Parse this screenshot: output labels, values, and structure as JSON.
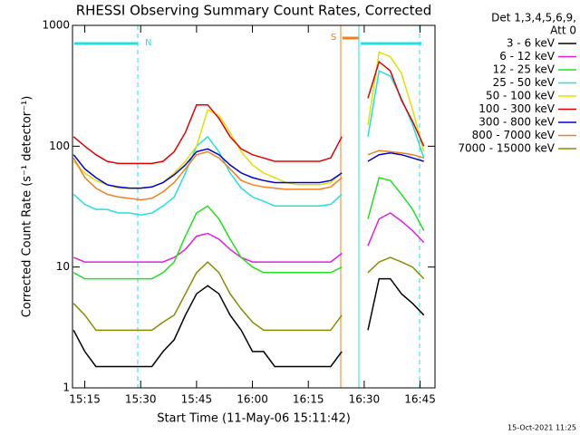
{
  "chart_data": {
    "type": "line",
    "title": "RHESSI Observing Summary Count Rates, Corrected",
    "x_label": "Start Time (11-May-06 15:11:42)",
    "y_label": "Corrected Count Rate (s⁻¹ detector⁻¹)",
    "legend_title": [
      "Det 1,3,4,5,6,9,",
      "Att 0"
    ],
    "footer": "15-Oct-2021 11:25",
    "annotations": [
      "N",
      "S"
    ],
    "ylog": true,
    "ylim": [
      1,
      1000
    ],
    "yticks": [
      1,
      10,
      100,
      1000
    ],
    "xlim": [
      "15:11:42",
      "16:49"
    ],
    "xticks": [
      "15:15",
      "15:30",
      "15:45",
      "16:00",
      "16:15",
      "16:30",
      "16:45"
    ],
    "legend": "right",
    "x": [
      "15:12",
      "15:15",
      "15:18",
      "15:21",
      "15:24",
      "15:27",
      "15:30",
      "15:33",
      "15:36",
      "15:39",
      "15:42",
      "15:45",
      "15:48",
      "15:51",
      "15:54",
      "15:57",
      "16:00",
      "16:03",
      "16:06",
      "16:09",
      "16:12",
      "16:15",
      "16:18",
      "16:21",
      "16:24",
      "16:27",
      "16:31",
      "16:34",
      "16:37",
      "16:40",
      "16:43",
      "16:46"
    ],
    "series": [
      {
        "name": "3 - 6 keV",
        "color": "#000000",
        "values": [
          3,
          2,
          1.5,
          1.5,
          1.5,
          1.5,
          1.5,
          1.5,
          2,
          2.5,
          4,
          6,
          7,
          6,
          4,
          3,
          2,
          2,
          1.5,
          1.5,
          1.5,
          1.5,
          1.5,
          1.5,
          2,
          null,
          3,
          8,
          8,
          6,
          5,
          4
        ]
      },
      {
        "name": "6 - 12 keV",
        "color": "#e020e0",
        "values": [
          12,
          11,
          11,
          11,
          11,
          11,
          11,
          11,
          11,
          12,
          14,
          18,
          19,
          17,
          14,
          12,
          11,
          11,
          11,
          11,
          11,
          11,
          11,
          11,
          13,
          null,
          15,
          25,
          28,
          24,
          20,
          16
        ]
      },
      {
        "name": "12 - 25 keV",
        "color": "#20e020",
        "values": [
          9,
          8,
          8,
          8,
          8,
          8,
          8,
          8,
          9,
          11,
          18,
          28,
          32,
          25,
          17,
          12,
          10,
          9,
          9,
          9,
          9,
          9,
          9,
          9,
          10,
          null,
          25,
          55,
          52,
          40,
          30,
          20
        ]
      },
      {
        "name": "25 - 50 keV",
        "color": "#20e0e0",
        "values": [
          40,
          33,
          30,
          30,
          28,
          28,
          27,
          28,
          32,
          38,
          60,
          100,
          120,
          90,
          60,
          45,
          38,
          35,
          32,
          32,
          32,
          32,
          32,
          33,
          40,
          null,
          120,
          420,
          380,
          250,
          150,
          80
        ]
      },
      {
        "name": "50 - 100 keV",
        "color": "#e0e000",
        "values": [
          75,
          60,
          52,
          48,
          45,
          45,
          45,
          46,
          50,
          60,
          75,
          100,
          200,
          180,
          130,
          90,
          70,
          60,
          55,
          50,
          48,
          48,
          48,
          50,
          60,
          null,
          150,
          600,
          550,
          400,
          200,
          90
        ]
      },
      {
        "name": "100 - 300 keV",
        "color": "#e00000",
        "values": [
          120,
          100,
          85,
          75,
          72,
          72,
          72,
          72,
          75,
          90,
          130,
          220,
          220,
          170,
          120,
          95,
          85,
          80,
          75,
          75,
          75,
          75,
          75,
          80,
          120,
          null,
          250,
          500,
          420,
          240,
          160,
          100
        ]
      },
      {
        "name": "300 - 800 keV",
        "color": "#0000d0",
        "values": [
          85,
          65,
          55,
          48,
          46,
          45,
          45,
          46,
          50,
          58,
          70,
          90,
          95,
          85,
          70,
          60,
          55,
          52,
          50,
          50,
          50,
          50,
          50,
          52,
          60,
          null,
          75,
          85,
          88,
          85,
          80,
          75
        ]
      },
      {
        "name": "800 - 7000 keV",
        "color": "#f08020",
        "values": [
          80,
          55,
          45,
          40,
          38,
          37,
          36,
          37,
          42,
          50,
          65,
          85,
          90,
          80,
          65,
          52,
          48,
          46,
          45,
          44,
          44,
          44,
          44,
          46,
          55,
          null,
          85,
          92,
          90,
          88,
          85,
          80
        ]
      },
      {
        "name": "7000 - 15000 keV",
        "color": "#8a8a00",
        "values": [
          5,
          4,
          3,
          3,
          3,
          3,
          3,
          3,
          3.5,
          4,
          6,
          9,
          11,
          9,
          6,
          4.5,
          3.5,
          3,
          3,
          3,
          3,
          3,
          3,
          3,
          4,
          null,
          9,
          11,
          12,
          11,
          10,
          8
        ]
      }
    ]
  }
}
